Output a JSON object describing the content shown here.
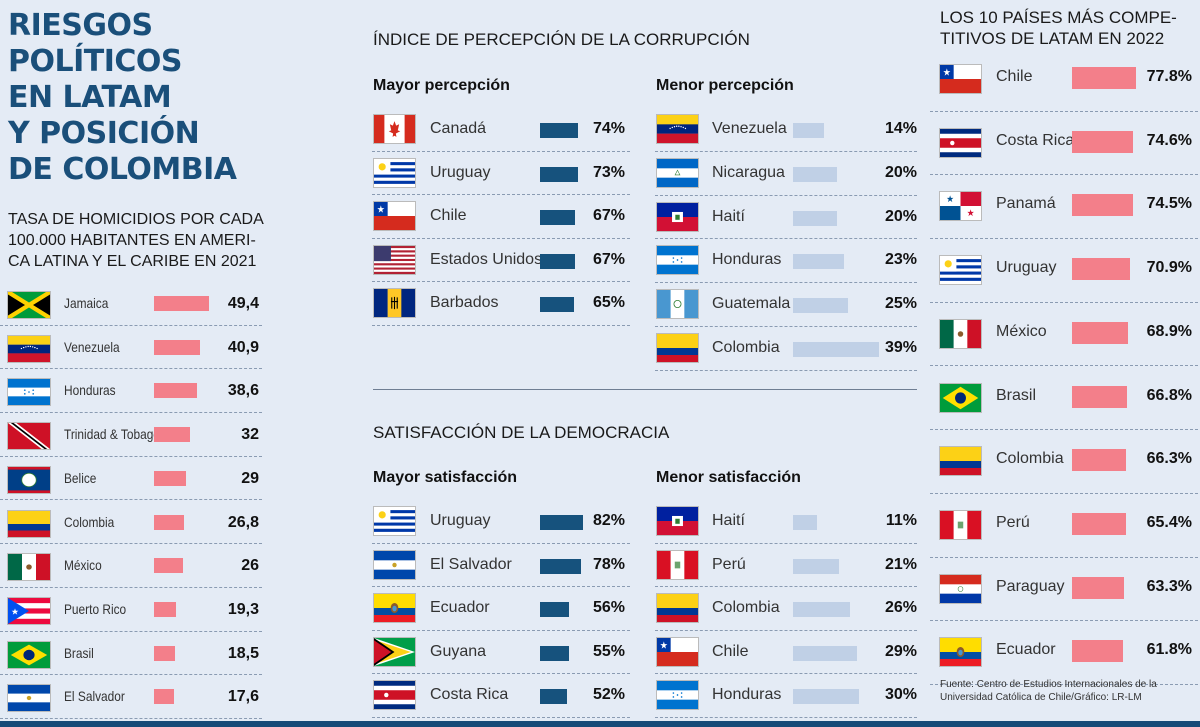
{
  "title": "RIESGOS\nPOLÍTICOS\nEN LATAM\nY POSICIÓN\nDE COLOMBIA",
  "colors": {
    "pink": "#f37f8a",
    "navy": "#16527d",
    "light": "#c0d0e6",
    "title": "#1a4f7a"
  },
  "homicide": {
    "title": "TASA DE HOMICIDIOS POR CADA\n100.000 HABITANTES EN AMERI-\nCA LATINA Y EL CARIBE EN 2021",
    "rows": [
      {
        "country": "Jamaica",
        "value": "49,4",
        "flag": "jamaica"
      },
      {
        "country": "Venezuela",
        "value": "40,9",
        "flag": "venezuela"
      },
      {
        "country": "Honduras",
        "value": "38,6",
        "flag": "honduras"
      },
      {
        "country": "Trinidad & Tobago",
        "value": "32",
        "flag": "trinidad"
      },
      {
        "country": "Belice",
        "value": "29",
        "flag": "belize"
      },
      {
        "country": "Colombia",
        "value": "26,8",
        "flag": "colombia"
      },
      {
        "country": "México",
        "value": "26",
        "flag": "mexico"
      },
      {
        "country": "Puerto Rico",
        "value": "19,3",
        "flag": "puertorico"
      },
      {
        "country": "Brasil",
        "value": "18,5",
        "flag": "brazil"
      },
      {
        "country": "El Salvador",
        "value": "17,6",
        "flag": "elsalvador"
      }
    ]
  },
  "corruption": {
    "title": "ÍNDICE DE PERCEPCIÓN DE LA CORRUPCIÓN",
    "left_title": "Mayor percepción",
    "right_title": "Menor percepción",
    "left": [
      {
        "country": "Canadá",
        "value": "74%",
        "flag": "canada"
      },
      {
        "country": "Uruguay",
        "value": "73%",
        "flag": "uruguay"
      },
      {
        "country": "Chile",
        "value": "67%",
        "flag": "chile"
      },
      {
        "country": "Estados Unidos",
        "value": "67%",
        "flag": "usa"
      },
      {
        "country": "Barbados",
        "value": "65%",
        "flag": "barbados"
      }
    ],
    "right": [
      {
        "country": "Venezuela",
        "value": "14%",
        "flag": "venezuela"
      },
      {
        "country": "Nicaragua",
        "value": "20%",
        "flag": "nicaragua"
      },
      {
        "country": "Haití",
        "value": "20%",
        "flag": "haiti"
      },
      {
        "country": "Honduras",
        "value": "23%",
        "flag": "honduras"
      },
      {
        "country": "Guatemala",
        "value": "25%",
        "flag": "guatemala"
      },
      {
        "country": "Colombia",
        "value": "39%",
        "flag": "colombia"
      }
    ]
  },
  "democracy": {
    "title": "SATISFACCIÓN DE LA DEMOCRACIA",
    "left_title": "Mayor satisfacción",
    "right_title": "Menor satisfacción",
    "left": [
      {
        "country": "Uruguay",
        "value": "82%",
        "flag": "uruguay"
      },
      {
        "country": "El Salvador",
        "value": "78%",
        "flag": "elsalvador"
      },
      {
        "country": "Ecuador",
        "value": "56%",
        "flag": "ecuador"
      },
      {
        "country": "Guyana",
        "value": "55%",
        "flag": "guyana"
      },
      {
        "country": "Costa Rica",
        "value": "52%",
        "flag": "costarica"
      }
    ],
    "right": [
      {
        "country": "Haití",
        "value": "11%",
        "flag": "haiti"
      },
      {
        "country": "Perú",
        "value": "21%",
        "flag": "peru"
      },
      {
        "country": "Colombia",
        "value": "26%",
        "flag": "colombia"
      },
      {
        "country": "Chile",
        "value": "29%",
        "flag": "chile"
      },
      {
        "country": "Honduras",
        "value": "30%",
        "flag": "honduras"
      }
    ]
  },
  "competitive": {
    "title": "LOS 10 PAÍSES MÁS COMPE-\nTITIVOS DE LATAM EN 2022",
    "rows": [
      {
        "country": "Chile",
        "value": "77.8%",
        "flag": "chile"
      },
      {
        "country": "Costa Rica",
        "value": "74.6%",
        "flag": "costarica"
      },
      {
        "country": "Panamá",
        "value": "74.5%",
        "flag": "panama"
      },
      {
        "country": "Uruguay",
        "value": "70.9%",
        "flag": "uruguay"
      },
      {
        "country": "México",
        "value": "68.9%",
        "flag": "mexico"
      },
      {
        "country": "Brasil",
        "value": "66.8%",
        "flag": "brazil"
      },
      {
        "country": "Colombia",
        "value": "66.3%",
        "flag": "colombia"
      },
      {
        "country": "Perú",
        "value": "65.4%",
        "flag": "peru"
      },
      {
        "country": "Paraguay",
        "value": "63.3%",
        "flag": "paraguay"
      },
      {
        "country": "Ecuador",
        "value": "61.8%",
        "flag": "ecuador"
      }
    ]
  },
  "source": "Fuente: Centro de Estudios Internacionales de la\nUniversidad Católica de Chile/Gráfico: LR-LM",
  "chart_data": [
    {
      "type": "bar",
      "title": "TASA DE HOMICIDIOS POR CADA 100.000 HABITANTES EN AMERICA LATINA Y EL CARIBE EN 2021",
      "orientation": "horizontal",
      "categories": [
        "Jamaica",
        "Venezuela",
        "Honduras",
        "Trinidad & Tobago",
        "Belice",
        "Colombia",
        "México",
        "Puerto Rico",
        "Brasil",
        "El Salvador"
      ],
      "values": [
        49.4,
        40.9,
        38.6,
        32,
        29,
        26.8,
        26,
        19.3,
        18.5,
        17.6
      ],
      "color": "#f37f8a"
    },
    {
      "type": "bar",
      "title": "ÍNDICE DE PERCEPCIÓN DE LA CORRUPCIÓN",
      "orientation": "horizontal",
      "series": [
        {
          "name": "Mayor percepción",
          "categories": [
            "Canadá",
            "Uruguay",
            "Chile",
            "Estados Unidos",
            "Barbados"
          ],
          "values": [
            74,
            73,
            67,
            67,
            65
          ],
          "color": "#16527d"
        },
        {
          "name": "Menor percepción",
          "categories": [
            "Venezuela",
            "Nicaragua",
            "Haití",
            "Honduras",
            "Guatemala",
            "Colombia"
          ],
          "values": [
            14,
            20,
            20,
            23,
            25,
            39
          ],
          "color": "#c0d0e6"
        }
      ]
    },
    {
      "type": "bar",
      "title": "SATISFACCIÓN DE LA DEMOCRACIA",
      "orientation": "horizontal",
      "series": [
        {
          "name": "Mayor satisfacción",
          "categories": [
            "Uruguay",
            "El Salvador",
            "Ecuador",
            "Guyana",
            "Costa Rica"
          ],
          "values": [
            82,
            78,
            56,
            55,
            52
          ],
          "color": "#16527d"
        },
        {
          "name": "Menor satisfacción",
          "categories": [
            "Haití",
            "Perú",
            "Colombia",
            "Chile",
            "Honduras"
          ],
          "values": [
            11,
            21,
            26,
            29,
            30
          ],
          "color": "#c0d0e6"
        }
      ]
    },
    {
      "type": "bar",
      "title": "LOS 10 PAÍSES MÁS COMPETITIVOS DE LATAM EN 2022",
      "orientation": "horizontal",
      "categories": [
        "Chile",
        "Costa Rica",
        "Panamá",
        "Uruguay",
        "México",
        "Brasil",
        "Colombia",
        "Perú",
        "Paraguay",
        "Ecuador"
      ],
      "values": [
        77.8,
        74.6,
        74.5,
        70.9,
        68.9,
        66.8,
        66.3,
        65.4,
        63.3,
        61.8
      ],
      "color": "#f37f8a"
    }
  ]
}
